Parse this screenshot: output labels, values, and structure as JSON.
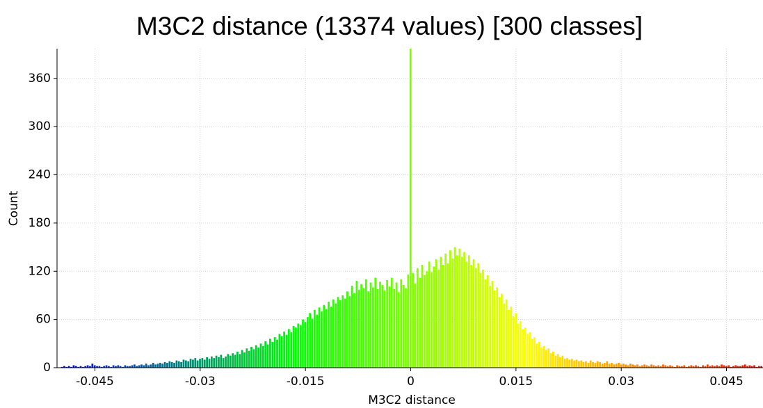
{
  "chart_data": {
    "type": "histogram",
    "title": "M3C2 distance (13374 values)  [300 classes]",
    "xlabel": "M3C2 distance",
    "ylabel": "Count",
    "bins": [
      -0.049833,
      -0.0495,
      -0.049167,
      -0.048833,
      -0.0485,
      -0.048167,
      -0.047833,
      -0.0475,
      -0.047167,
      -0.046833,
      -0.0465,
      -0.046167,
      -0.045833,
      -0.0455,
      -0.045167,
      -0.044833,
      -0.0445,
      -0.044167,
      -0.043833,
      -0.0435,
      -0.043167,
      -0.042833,
      -0.0425,
      -0.042167,
      -0.041833,
      -0.0415,
      -0.041167,
      -0.040833,
      -0.0405,
      -0.040167,
      -0.039833,
      -0.0395,
      -0.039167,
      -0.038833,
      -0.0385,
      -0.038167,
      -0.037833,
      -0.0375,
      -0.037167,
      -0.036833,
      -0.0365,
      -0.036167,
      -0.035833,
      -0.0355,
      -0.035167,
      -0.034833,
      -0.0345,
      -0.034167,
      -0.033833,
      -0.0335,
      -0.033167,
      -0.032833,
      -0.0325,
      -0.032167,
      -0.031833,
      -0.0315,
      -0.031167,
      -0.030833,
      -0.0305,
      -0.030167,
      -0.029833,
      -0.0295,
      -0.029167,
      -0.028833,
      -0.0285,
      -0.028167,
      -0.027833,
      -0.0275,
      -0.027167,
      -0.026833,
      -0.0265,
      -0.026167,
      -0.025833,
      -0.0255,
      -0.025167,
      -0.024833,
      -0.0245,
      -0.024167,
      -0.023833,
      -0.0235,
      -0.023167,
      -0.022833,
      -0.0225,
      -0.022167,
      -0.021833,
      -0.0215,
      -0.021167,
      -0.020833,
      -0.0205,
      -0.020167,
      -0.019833,
      -0.0195,
      -0.019167,
      -0.018833,
      -0.0185,
      -0.018167,
      -0.017833,
      -0.0175,
      -0.017167,
      -0.016833,
      -0.0165,
      -0.016167,
      -0.015833,
      -0.0155,
      -0.015167,
      -0.014833,
      -0.0145,
      -0.014167,
      -0.013833,
      -0.0135,
      -0.013167,
      -0.012833,
      -0.0125,
      -0.012167,
      -0.011833,
      -0.0115,
      -0.011167,
      -0.010833,
      -0.0105,
      -0.010167,
      -0.009833,
      -0.0095,
      -0.009167,
      -0.008833,
      -0.0085,
      -0.008167,
      -0.007833,
      -0.0075,
      -0.007167,
      -0.006833,
      -0.0065,
      -0.006167,
      -0.005833,
      -0.0055,
      -0.005167,
      -0.004833,
      -0.0045,
      -0.004167,
      -0.003833,
      -0.0035,
      -0.003167,
      -0.002833,
      -0.0025,
      -0.002167,
      -0.001833,
      -0.0015,
      -0.001167,
      -0.000833,
      -0.0005,
      -0.000167,
      0.000167,
      0.0005,
      0.000833,
      0.001167,
      0.0015,
      0.001833,
      0.002167,
      0.0025,
      0.002833,
      0.003167,
      0.0035,
      0.003833,
      0.004167,
      0.0045,
      0.004833,
      0.005167,
      0.0055,
      0.005833,
      0.006167,
      0.0065,
      0.006833,
      0.007167,
      0.0075,
      0.007833,
      0.008167,
      0.0085,
      0.008833,
      0.009167,
      0.0095,
      0.009833,
      0.010167,
      0.0105,
      0.010833,
      0.011167,
      0.0115,
      0.011833,
      0.012167,
      0.0125,
      0.012833,
      0.013167,
      0.0135,
      0.013833,
      0.014167,
      0.0145,
      0.014833,
      0.015167,
      0.0155,
      0.015833,
      0.016167,
      0.0165,
      0.016833,
      0.017167,
      0.0175,
      0.017833,
      0.018167,
      0.0185,
      0.018833,
      0.019167,
      0.0195,
      0.019833,
      0.020167,
      0.0205,
      0.020833,
      0.021167,
      0.0215,
      0.021833,
      0.022167,
      0.0225,
      0.022833,
      0.023167,
      0.0235,
      0.023833,
      0.024167,
      0.0245,
      0.024833,
      0.025167,
      0.0255,
      0.025833,
      0.026167,
      0.0265,
      0.026833,
      0.027167,
      0.0275,
      0.027833,
      0.028167,
      0.0285,
      0.028833,
      0.029167,
      0.0295,
      0.029833,
      0.030167,
      0.0305,
      0.030833,
      0.031167,
      0.0315,
      0.031833,
      0.032167,
      0.0325,
      0.032833,
      0.033167,
      0.0335,
      0.033833,
      0.034167,
      0.0345,
      0.034833,
      0.035167,
      0.0355,
      0.035833,
      0.036167,
      0.0365,
      0.036833,
      0.037167,
      0.0375,
      0.037833,
      0.038167,
      0.0385,
      0.038833,
      0.039167,
      0.0395,
      0.039833,
      0.040167,
      0.0405,
      0.040833,
      0.041167,
      0.0415,
      0.041833,
      0.042167,
      0.0425,
      0.042833,
      0.043167,
      0.0435,
      0.043833,
      0.044167,
      0.0445,
      0.044833,
      0.045167,
      0.0455,
      0.045833,
      0.046167,
      0.0465,
      0.046833,
      0.047167,
      0.0475,
      0.047833,
      0.048167,
      0.0485,
      0.048833,
      0.049167,
      0.0495,
      0.049833,
      0.050167
    ],
    "values": [
      1,
      2,
      1,
      2,
      1,
      3,
      2,
      1,
      2,
      1,
      2,
      3,
      2,
      5,
      3,
      2,
      2,
      1,
      2,
      3,
      2,
      1,
      3,
      2,
      3,
      2,
      1,
      3,
      2,
      2,
      3,
      4,
      2,
      3,
      4,
      3,
      5,
      3,
      4,
      6,
      4,
      5,
      6,
      5,
      7,
      6,
      8,
      7,
      6,
      9,
      8,
      7,
      10,
      9,
      8,
      11,
      10,
      12,
      9,
      11,
      12,
      10,
      13,
      11,
      14,
      12,
      15,
      13,
      16,
      12,
      14,
      17,
      15,
      18,
      16,
      20,
      17,
      22,
      19,
      24,
      21,
      26,
      23,
      28,
      25,
      30,
      27,
      33,
      29,
      36,
      32,
      38,
      35,
      42,
      39,
      45,
      41,
      48,
      44,
      52,
      50,
      55,
      53,
      60,
      57,
      63,
      68,
      61,
      72,
      66,
      75,
      70,
      78,
      73,
      82,
      76,
      85,
      80,
      88,
      84,
      90,
      86,
      95,
      89,
      102,
      93,
      108,
      97,
      104,
      99,
      110,
      95,
      106,
      100,
      112,
      98,
      107,
      103,
      96,
      109,
      101,
      112,
      98,
      106,
      94,
      110,
      103,
      99,
      116,
      397,
      118,
      105,
      124,
      112,
      128,
      115,
      120,
      132,
      119,
      126,
      135,
      122,
      138,
      128,
      142,
      130,
      146,
      136,
      150,
      140,
      148,
      138,
      144,
      132,
      140,
      128,
      135,
      124,
      130,
      118,
      122,
      110,
      115,
      102,
      108,
      96,
      100,
      88,
      92,
      80,
      85,
      72,
      76,
      64,
      68,
      55,
      58,
      48,
      50,
      42,
      44,
      36,
      38,
      30,
      32,
      25,
      27,
      22,
      24,
      18,
      20,
      15,
      17,
      13,
      15,
      11,
      12,
      10,
      11,
      9,
      10,
      8,
      9,
      7,
      8,
      6,
      9,
      7,
      6,
      8,
      7,
      5,
      6,
      8,
      5,
      6,
      4,
      5,
      6,
      4,
      5,
      4,
      3,
      5,
      4,
      3,
      4,
      2,
      3,
      4,
      3,
      2,
      4,
      3,
      2,
      3,
      2,
      4,
      3,
      2,
      3,
      2,
      1,
      3,
      2,
      2,
      3,
      1,
      2,
      3,
      2,
      3,
      2,
      1,
      3,
      2,
      4,
      2,
      3,
      2,
      3,
      2,
      4,
      3,
      2,
      3,
      1,
      2,
      3,
      2,
      2,
      3,
      4,
      2,
      3,
      2,
      3,
      1,
      2,
      2
    ],
    "colormap": [
      "#0000ff",
      "#00ff00",
      "#ffff00",
      "#ff0000"
    ],
    "xlim": [
      -0.0504,
      0.0502
    ],
    "ylim": [
      0,
      397
    ],
    "xticks": [
      -0.045,
      -0.03,
      -0.015,
      0,
      0.015,
      0.03,
      0.045
    ],
    "yticks": [
      0,
      60,
      120,
      180,
      240,
      300,
      360
    ],
    "grid": true
  }
}
